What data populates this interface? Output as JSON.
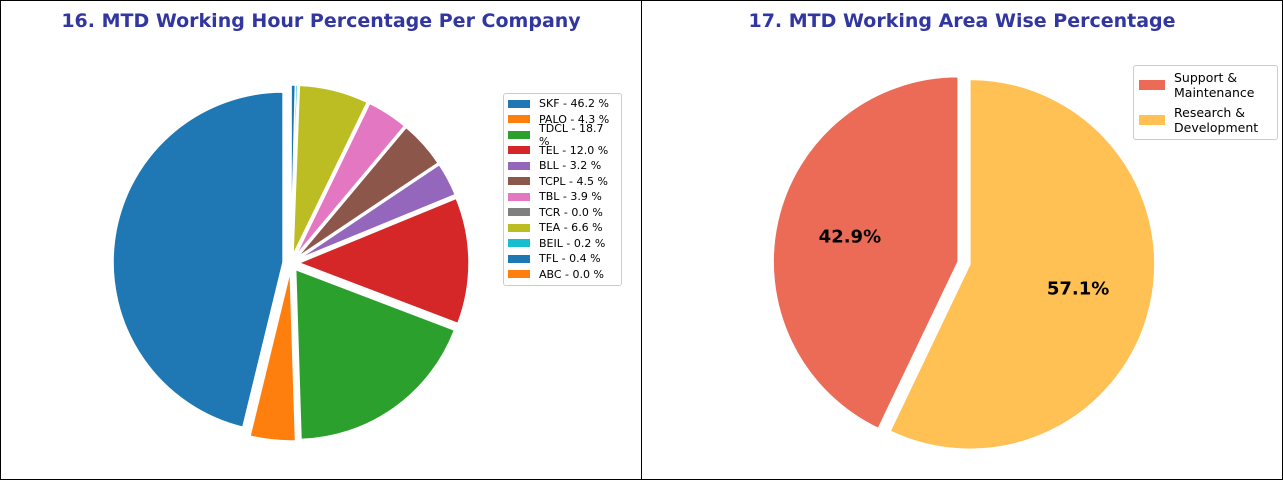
{
  "chart_data": [
    {
      "type": "pie",
      "title": "16. MTD Working Hour Percentage Per Company",
      "legend_position": "right",
      "slices": [
        {
          "label": "SKF - 46.2 %",
          "value": 46.2,
          "color": "#1f77b4"
        },
        {
          "label": "PALO - 4.3 %",
          "value": 4.3,
          "color": "#ff7f0e"
        },
        {
          "label": "TDCL - 18.7 %",
          "value": 18.7,
          "color": "#2ca02c"
        },
        {
          "label": "TEL - 12.0 %",
          "value": 12.0,
          "color": "#d62728"
        },
        {
          "label": "BLL - 3.2 %",
          "value": 3.2,
          "color": "#9467bd"
        },
        {
          "label": "TCPL - 4.5 %",
          "value": 4.5,
          "color": "#8c564b"
        },
        {
          "label": "TBL - 3.9 %",
          "value": 3.9,
          "color": "#e377c2"
        },
        {
          "label": "TCR - 0.0 %",
          "value": 0.0,
          "color": "#7f7f7f"
        },
        {
          "label": "TEA - 6.6 %",
          "value": 6.6,
          "color": "#bcbd22"
        },
        {
          "label": "BEIL - 0.2 %",
          "value": 0.2,
          "color": "#17becf"
        },
        {
          "label": "TFL - 0.4 %",
          "value": 0.4,
          "color": "#1f77b4"
        },
        {
          "label": "ABC - 0.0 %",
          "value": 0.0,
          "color": "#ff7f0e"
        }
      ]
    },
    {
      "type": "pie",
      "title": "17. MTD Working Area Wise Percentage",
      "legend_position": "top-right",
      "slices": [
        {
          "label": "Support &\nMaintenance",
          "value": 42.9,
          "pct_label": "42.9%",
          "color": "#ec6b56"
        },
        {
          "label": "Research &\nDevelopment",
          "value": 57.1,
          "pct_label": "57.1%",
          "color": "#ffc154"
        }
      ]
    }
  ]
}
